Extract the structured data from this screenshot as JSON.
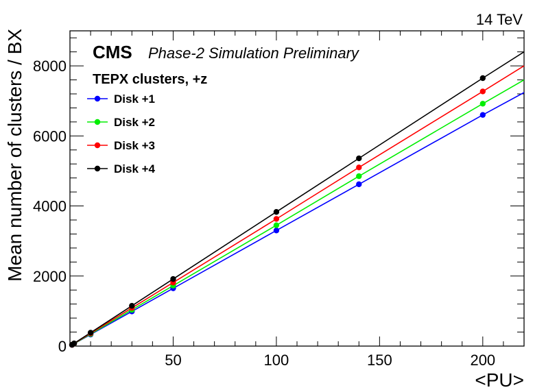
{
  "chart_data": {
    "type": "line",
    "energy_label": "14 TeV",
    "experiment": "CMS",
    "status": "Phase-2 Simulation Preliminary",
    "subtitle": "TEPX clusters, +z",
    "xlabel": "<PU>",
    "ylabel": "Mean number of clusters / BX",
    "xlim": [
      0,
      220
    ],
    "ylim": [
      0,
      9000
    ],
    "xticks": [
      50,
      100,
      150,
      200
    ],
    "yticks": [
      0,
      2000,
      4000,
      6000,
      8000
    ],
    "legend_position": "top-left",
    "series": [
      {
        "name": "Disk +1",
        "color": "#0000ff",
        "x": [
          1,
          2,
          10,
          30,
          50,
          100,
          140,
          200
        ],
        "y": [
          33,
          66,
          330,
          990,
          1650,
          3300,
          4620,
          6600
        ],
        "fit_end": [
          220,
          7240
        ]
      },
      {
        "name": "Disk +2",
        "color": "#00ee00",
        "x": [
          1,
          2,
          10,
          30,
          50,
          100,
          140,
          200
        ],
        "y": [
          35,
          69,
          345,
          1035,
          1725,
          3450,
          4850,
          6920
        ],
        "fit_end": [
          220,
          7600
        ]
      },
      {
        "name": "Disk +3",
        "color": "#ff0000",
        "x": [
          1,
          2,
          10,
          30,
          50,
          100,
          140,
          200
        ],
        "y": [
          36,
          73,
          363,
          1090,
          1815,
          3630,
          5100,
          7270
        ],
        "fit_end": [
          220,
          8000
        ]
      },
      {
        "name": "Disk +4",
        "color": "#000000",
        "x": [
          1,
          2,
          10,
          30,
          50,
          100,
          140,
          200
        ],
        "y": [
          38,
          77,
          383,
          1150,
          1915,
          3830,
          5360,
          7650
        ],
        "fit_end": [
          220,
          8400
        ]
      }
    ]
  }
}
